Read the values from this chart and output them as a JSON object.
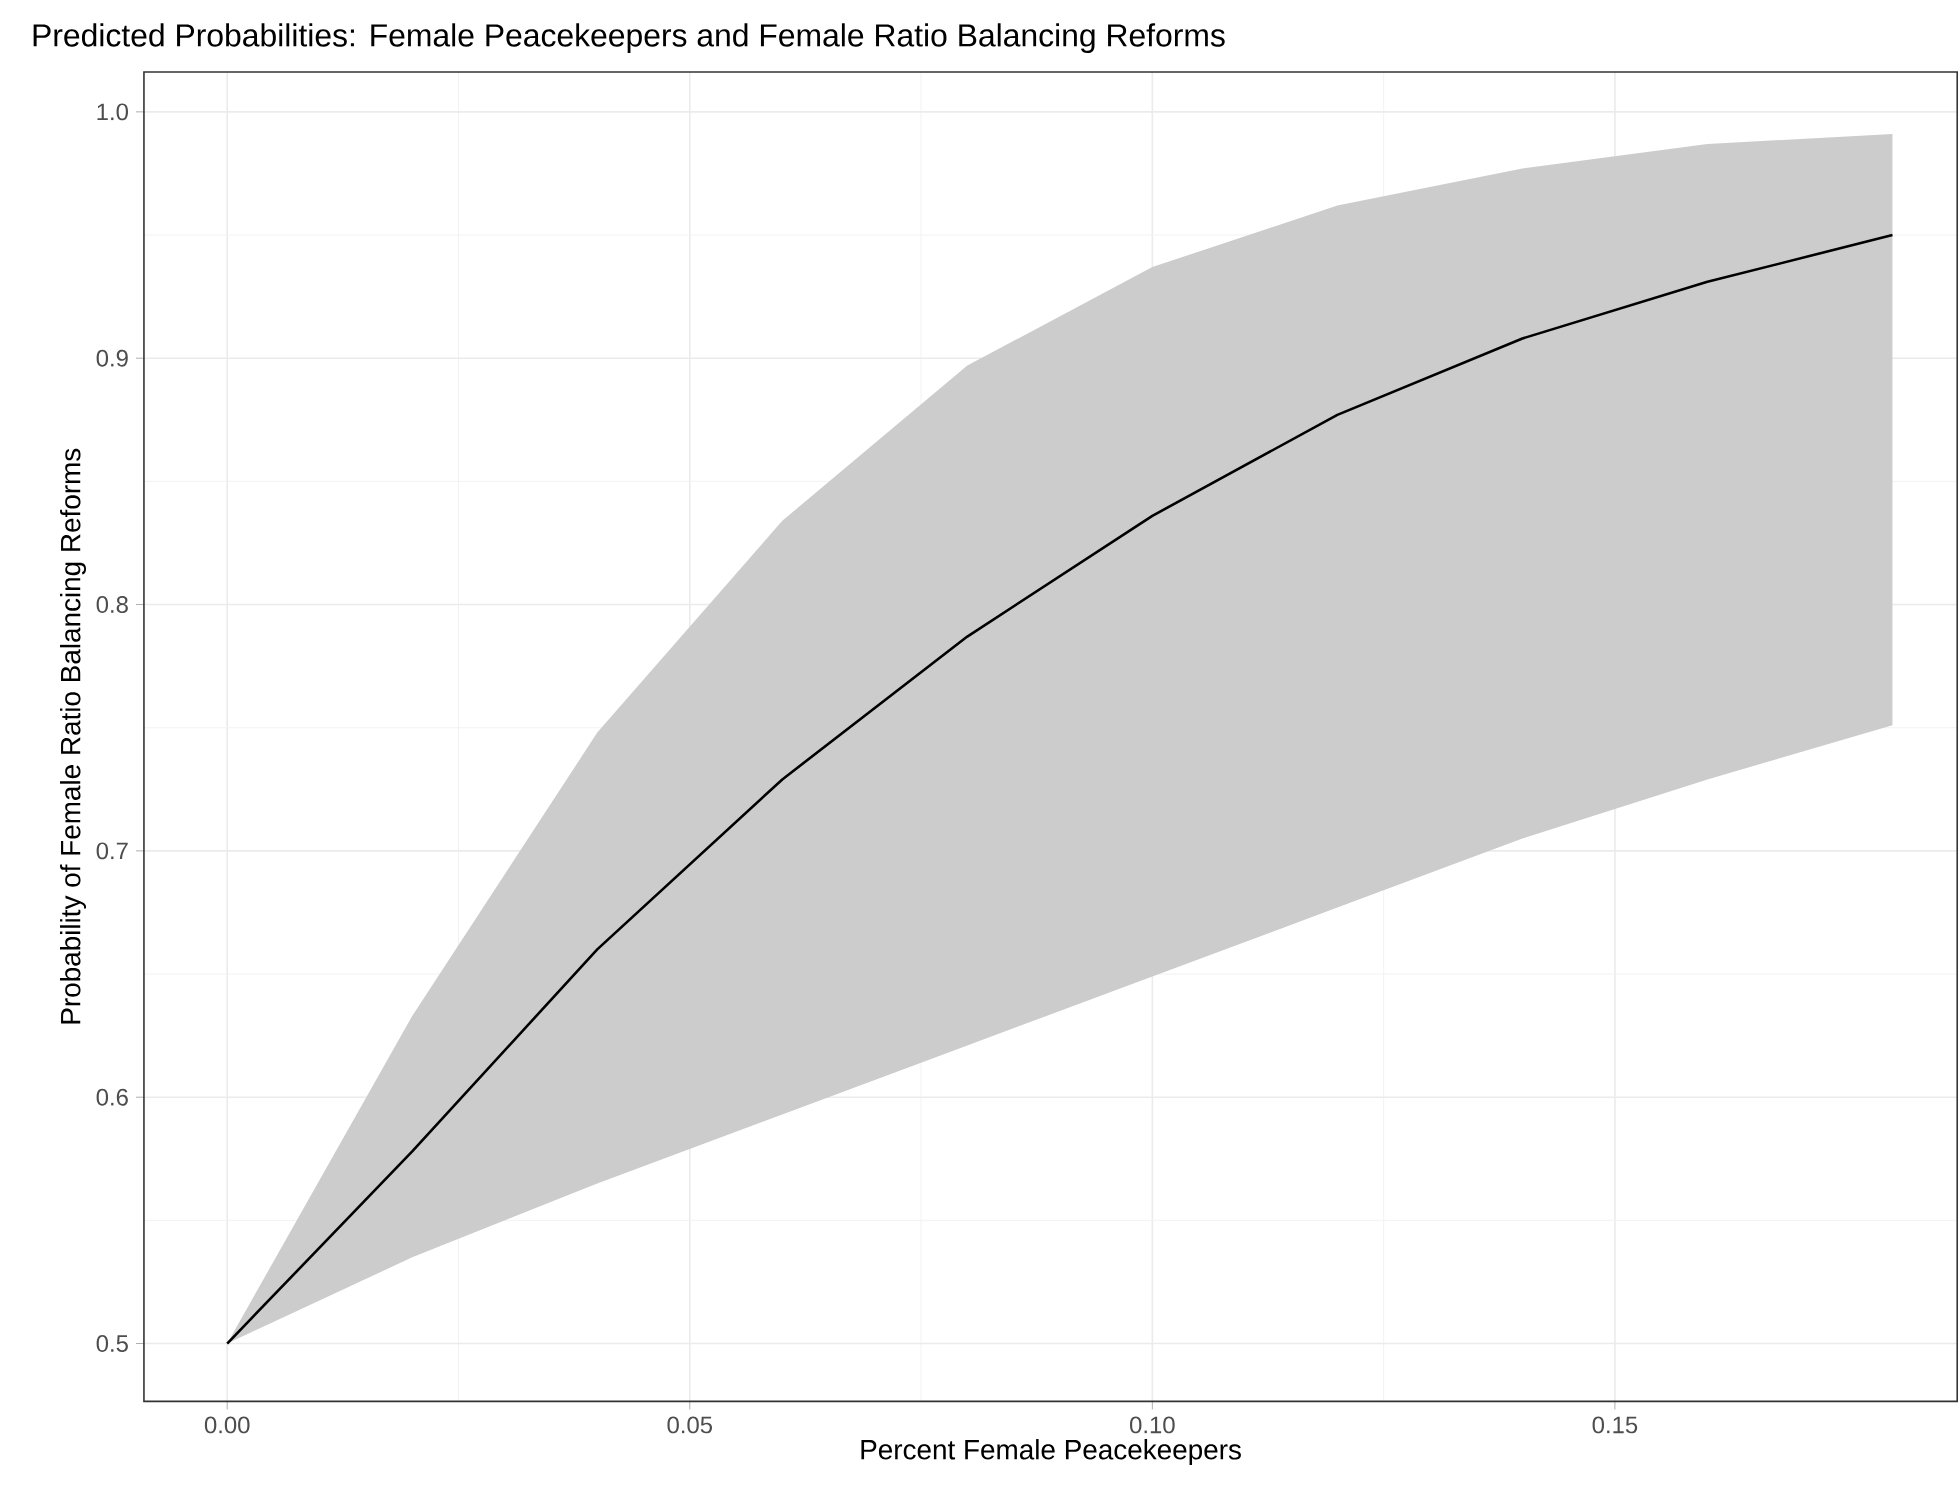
{
  "chart_data": {
    "type": "line",
    "title": "Predicted Probabilities: Female Peacekeepers and Female Ratio Balancing Reforms",
    "xlabel": "Percent Female Peacekeepers",
    "ylabel": "Probability of Female Ratio Balancing Reforms",
    "x": [
      0,
      0.02,
      0.04,
      0.06,
      0.08,
      0.1,
      0.12,
      0.14,
      0.16,
      0.18
    ],
    "series": [
      {
        "color": "#000000",
        "values": [
          0.5,
          0.578,
          0.66,
          0.729,
          0.787,
          0.836,
          0.877,
          0.908,
          0.931,
          0.95
        ],
        "lower": [
          0.5,
          0.535,
          0.565,
          0.593,
          0.621,
          0.649,
          0.677,
          0.705,
          0.729,
          0.751
        ],
        "upper": [
          0.5,
          0.633,
          0.748,
          0.834,
          0.897,
          0.937,
          0.962,
          0.977,
          0.987,
          0.991
        ]
      }
    ],
    "xlim": [
      -0.009,
      0.187
    ],
    "ylim": [
      0.4765,
      1.0162
    ],
    "xticks": [
      {
        "value": 0,
        "label": "0.00"
      },
      0.05,
      {
        "value": 0.1,
        "label": "0.10"
      },
      0.15
    ],
    "yticks": [
      0.5,
      0.6,
      0.7,
      0.8,
      0.9,
      {
        "value": 1,
        "label": "1.0"
      }
    ],
    "grid": true,
    "marker": "none",
    "line_style": "solid"
  }
}
